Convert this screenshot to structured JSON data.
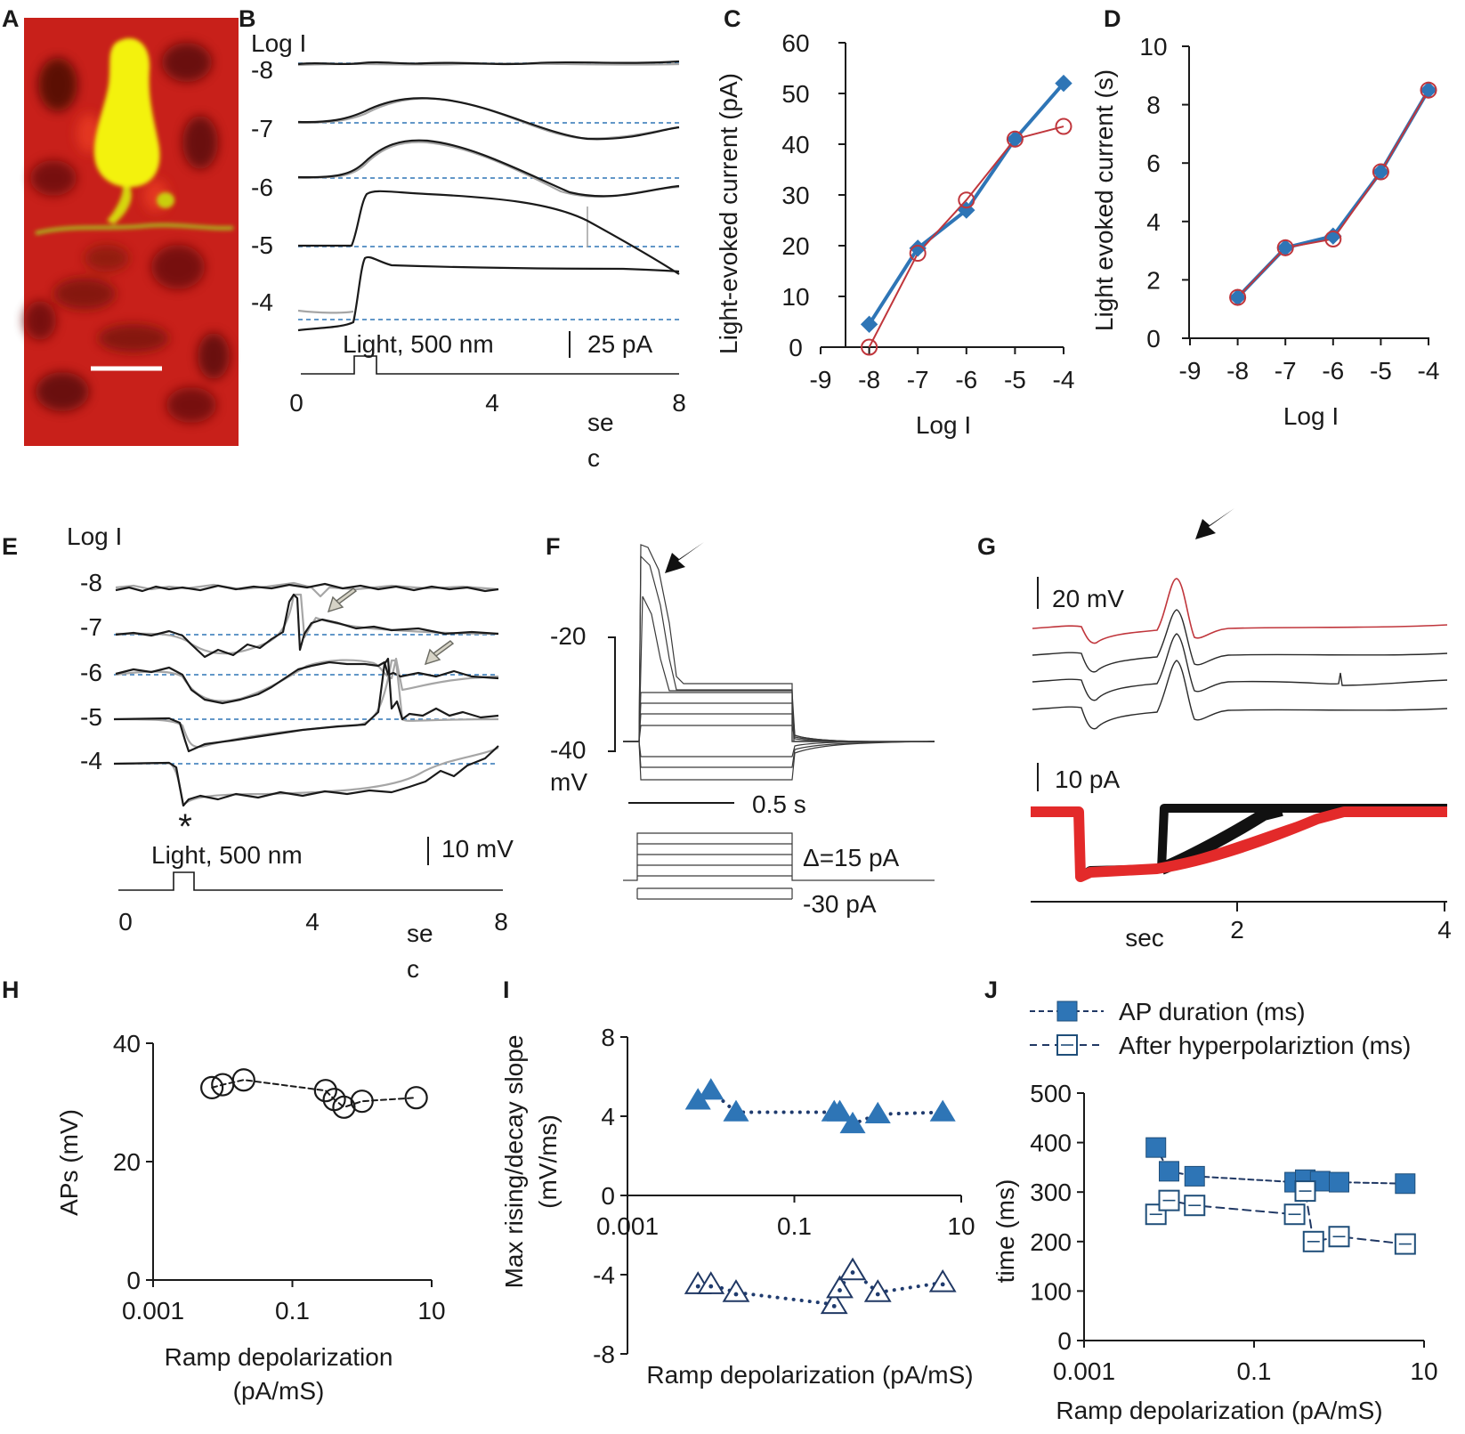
{
  "panel_labels": [
    "A",
    "B",
    "C",
    "D",
    "E",
    "F",
    "G",
    "H",
    "I",
    "J"
  ],
  "colors": {
    "blue": "#2e75b6",
    "red": "#c0363c",
    "dark_blue": "#203864",
    "dot_blue": "#1f3b6e",
    "image_red": "#c8201a",
    "image_yellow": "#f3f20a",
    "axis": "#1a1a1a",
    "grey_trace": "#a6a6a6"
  },
  "panel_B": {
    "loglabel": "Log I",
    "intensities": [
      "-8",
      "-7",
      "-6",
      "-5",
      "-4"
    ],
    "stimulus_label": "Light, 500 nm",
    "scale_label": "25 pA",
    "x_ticks": [
      "0",
      "4",
      "8"
    ],
    "x_unit_line1": "se",
    "x_unit_line2": "c"
  },
  "panel_E": {
    "loglabel": "Log I",
    "intensities": [
      "-8",
      "-7",
      "-6",
      "-5",
      "-4"
    ],
    "stimulus_label": "Light, 500 nm",
    "scale_label": "10 mV",
    "asterisk": "*",
    "x_ticks": [
      "0",
      "4",
      "8"
    ],
    "x_unit_line1": "se",
    "x_unit_line2": "c"
  },
  "panel_F": {
    "y_ticks": [
      "-20",
      "-40"
    ],
    "y_unit": "mV",
    "time_scale": "0.5 s",
    "step_label": "Δ=15 pA",
    "start_label": "-30 pA"
  },
  "panel_G": {
    "v_scale": "20 mV",
    "i_scale": "10 pA",
    "x_ticks": [
      "2",
      "4"
    ],
    "x_unit": "sec"
  },
  "chart_data": [
    {
      "id": "C",
      "type": "line",
      "xlabel": "Log I",
      "ylabel": "Light-evoked current (pA)",
      "xlim": [
        -9,
        -4
      ],
      "ylim": [
        0,
        60
      ],
      "x_ticks": [
        "-9",
        "-8",
        "-7",
        "-6",
        "-5",
        "-4"
      ],
      "y_ticks": [
        "0",
        "10",
        "20",
        "30",
        "40",
        "50",
        "60"
      ],
      "series": [
        {
          "name": "filled",
          "marker": "diamond",
          "x": [
            -8,
            -7,
            -6,
            -5,
            -4
          ],
          "values": [
            4.5,
            19.5,
            27,
            41,
            52
          ]
        },
        {
          "name": "open",
          "marker": "circle",
          "x": [
            -8,
            -7,
            -6,
            -5,
            -4
          ],
          "values": [
            0,
            18.5,
            29,
            41,
            43.5
          ]
        }
      ]
    },
    {
      "id": "D",
      "type": "line",
      "xlabel": "Log I",
      "ylabel": "Light evoked current (s)",
      "xlim": [
        -9,
        -4
      ],
      "ylim": [
        0,
        10
      ],
      "x_ticks": [
        "-9",
        "-8",
        "-7",
        "-6",
        "-5",
        "-4"
      ],
      "y_ticks": [
        "0",
        "2",
        "4",
        "6",
        "8",
        "10"
      ],
      "series": [
        {
          "name": "filled",
          "marker": "diamond",
          "x": [
            -8,
            -7,
            -6,
            -5,
            -4
          ],
          "values": [
            1.4,
            3.1,
            3.5,
            5.7,
            8.5
          ]
        },
        {
          "name": "open",
          "marker": "circle",
          "x": [
            -8,
            -7,
            -6,
            -5,
            -4
          ],
          "values": [
            1.4,
            3.1,
            3.4,
            5.7,
            8.5
          ]
        }
      ]
    },
    {
      "id": "H",
      "type": "scatter",
      "xlabel_line1": "Ramp depolarization",
      "xlabel_line2": "(pA/mS)",
      "ylabel": "APs (mV)",
      "xscale": "log",
      "xlim": [
        0.001,
        10
      ],
      "ylim": [
        0,
        40
      ],
      "x_ticks": [
        "0.001",
        "0.1",
        "10"
      ],
      "y_ticks": [
        "0",
        "20",
        "40"
      ],
      "series": [
        {
          "name": "APs",
          "marker": "open-circle",
          "x": [
            0.007,
            0.01,
            0.02,
            0.3,
            0.4,
            0.55,
            1.0,
            6.0
          ],
          "values": [
            32.5,
            33,
            33.8,
            32,
            30.5,
            29.2,
            30.2,
            30.8
          ]
        }
      ]
    },
    {
      "id": "I",
      "type": "scatter",
      "xlabel": "Ramp depolarization (pA/mS)",
      "ylabel_line1": "Max rising/decay slope",
      "ylabel_line2": "(mV/ms)",
      "xscale": "log",
      "xlim": [
        0.001,
        10
      ],
      "ylim": [
        -8,
        8
      ],
      "x_ticks": [
        "0.001",
        "0.1",
        "10"
      ],
      "y_ticks": [
        "-8",
        "-4",
        "0",
        "4",
        "8"
      ],
      "series": [
        {
          "name": "rising",
          "marker": "filled-triangle",
          "x": [
            0.007,
            0.01,
            0.02,
            0.3,
            0.35,
            0.5,
            1.0,
            6.0
          ],
          "values": [
            4.8,
            5.3,
            4.2,
            4.2,
            4.2,
            3.6,
            4.1,
            4.2
          ]
        },
        {
          "name": "decay",
          "marker": "open-triangle",
          "x": [
            0.007,
            0.01,
            0.02,
            0.3,
            0.35,
            0.5,
            1.0,
            6.0
          ],
          "values": [
            -4.5,
            -4.5,
            -4.9,
            -5.5,
            -4.7,
            -3.8,
            -4.9,
            -4.4
          ]
        }
      ]
    },
    {
      "id": "J",
      "type": "scatter",
      "xlabel": "Ramp depolarization (pA/mS)",
      "ylabel": "time (ms)",
      "xscale": "log",
      "xlim": [
        0.001,
        10
      ],
      "ylim": [
        0,
        500
      ],
      "x_ticks": [
        "0.001",
        "0.1",
        "10"
      ],
      "y_ticks": [
        "0",
        "100",
        "200",
        "300",
        "400",
        "500"
      ],
      "legend": "top",
      "series": [
        {
          "name": "AP duration (ms)",
          "marker": "filled-square",
          "x": [
            0.007,
            0.01,
            0.02,
            0.3,
            0.4,
            0.6,
            1.0,
            6.0
          ],
          "values": [
            390,
            342,
            332,
            320,
            325,
            322,
            320,
            317
          ]
        },
        {
          "name": "After hyperpolariztion (ms)",
          "marker": "open-square",
          "x": [
            0.007,
            0.01,
            0.02,
            0.3,
            0.4,
            0.5,
            1.0,
            6.0
          ],
          "values": [
            255,
            283,
            273,
            255,
            302,
            200,
            210,
            195
          ]
        }
      ]
    }
  ]
}
